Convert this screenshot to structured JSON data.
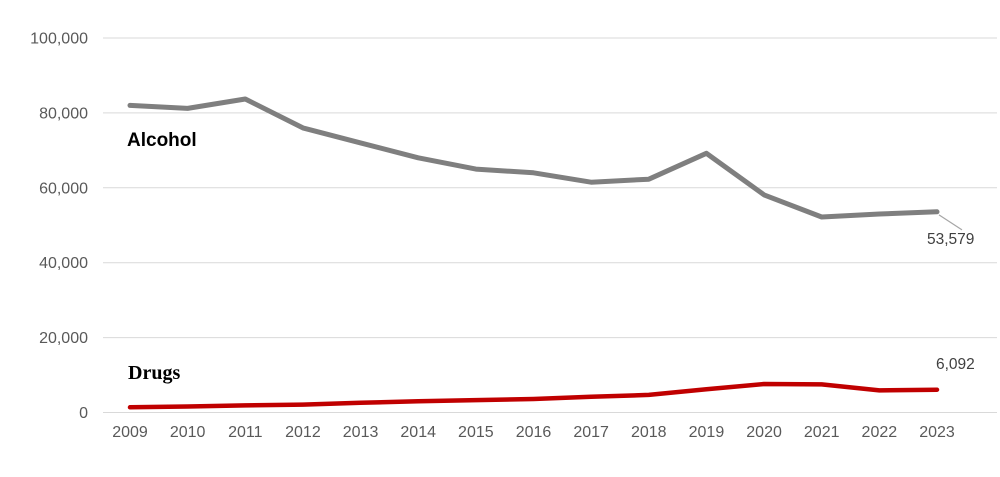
{
  "chart_data": {
    "type": "line",
    "title": "",
    "xlabel": "",
    "ylabel": "",
    "categories": [
      "2009",
      "2010",
      "2011",
      "2012",
      "2013",
      "2014",
      "2015",
      "2016",
      "2017",
      "2018",
      "2019",
      "2020",
      "2021",
      "2022",
      "2023"
    ],
    "series": [
      {
        "name": "Alcohol",
        "color": "#7f7f7f",
        "values": [
          82000,
          81200,
          83700,
          76000,
          72000,
          68000,
          65000,
          64000,
          61500,
          62300,
          69200,
          58100,
          52200,
          53000,
          53579
        ],
        "end_label": "53,579"
      },
      {
        "name": "Drugs",
        "color": "#c00000",
        "values": [
          1400,
          1600,
          1900,
          2100,
          2600,
          3000,
          3300,
          3600,
          4200,
          4700,
          6200,
          7600,
          7500,
          5900,
          6092
        ],
        "end_label": "6,092"
      }
    ],
    "ylim": [
      0,
      100000
    ],
    "ytick_step": 20000,
    "ytick_labels": [
      "0",
      "20,000",
      "40,000",
      "60,000",
      "80,000",
      "100,000"
    ],
    "grid": "horizontal-only",
    "gridline_color": "#d9d9d9",
    "axis_text_color": "#595959",
    "data_label_color": "#404040",
    "leader_line_color": "#a6a6a6",
    "legend_position": "inline-labels-on-plot"
  }
}
